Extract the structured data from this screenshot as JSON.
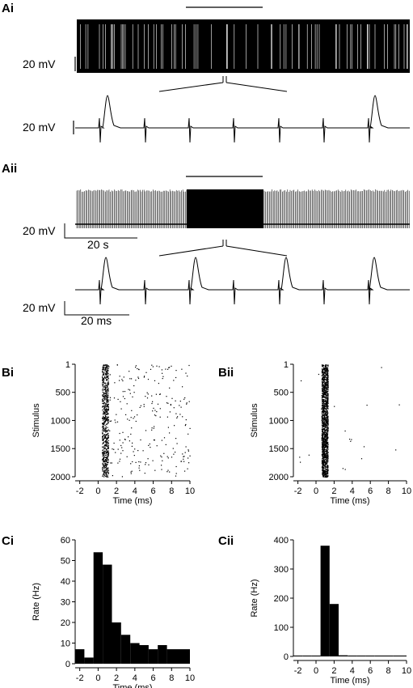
{
  "panels": {
    "Ai": "Ai",
    "Aii": "Aii",
    "Bi": "Bi",
    "Bii": "Bii",
    "Ci": "Ci",
    "Cii": "Cii"
  },
  "scale_bars": {
    "ai_voltage": "20 mV",
    "ai_zoom_voltage": "20 mV",
    "aii_voltage": "20 mV",
    "aii_time": "20 s",
    "aii_zoom_voltage": "20 mV",
    "aii_zoom_time": "20 ms"
  },
  "chart_data": [
    {
      "panel": "Bi",
      "type": "scatter",
      "xlabel": "Time (ms)",
      "ylabel": "Stimulus",
      "xlim": [
        -2.5,
        10
      ],
      "ylim": [
        2050,
        1
      ],
      "x_ticks": [
        -2,
        0,
        2,
        4,
        6,
        8,
        10
      ],
      "y_ticks": [
        1,
        500,
        1000,
        1500,
        2000
      ],
      "description": "raster; dense column of spikes at ~0.5-1 ms, sparse scattered spikes 1-10 ms",
      "peak_x": [
        0.4,
        1.1
      ],
      "sparse_count": 240
    },
    {
      "panel": "Bii",
      "type": "scatter",
      "xlabel": "Time (ms)",
      "ylabel": "Stimulus",
      "xlim": [
        -2.5,
        10
      ],
      "ylim": [
        2050,
        1
      ],
      "x_ticks": [
        -2,
        0,
        2,
        4,
        6,
        8,
        10
      ],
      "y_ticks": [
        1,
        500,
        1000,
        1500,
        2000
      ],
      "description": "raster; very dense column of spikes at ~0.7-1.2 ms, very few spikes elsewhere",
      "peak_x": [
        0.6,
        1.3
      ],
      "sparse_count": 20
    },
    {
      "panel": "Ci",
      "type": "bar",
      "xlabel": "Time (ms)",
      "ylabel": "Rate (Hz)",
      "xlim": [
        -2.5,
        10
      ],
      "ylim": [
        0,
        60
      ],
      "x_ticks": [
        -2,
        0,
        2,
        4,
        6,
        8,
        10
      ],
      "y_ticks": [
        0,
        10,
        20,
        30,
        40,
        50,
        60
      ],
      "bin_edges": [
        -2.5,
        -1.5,
        -0.5,
        0.5,
        1.5,
        2.5,
        3.5,
        4.5,
        5.5,
        6.5,
        7.5,
        8.5,
        10
      ],
      "values": [
        7,
        3,
        54,
        48,
        20,
        14,
        10,
        9,
        7,
        9,
        7,
        7
      ]
    },
    {
      "panel": "Cii",
      "type": "bar",
      "xlabel": "Time (ms)",
      "ylabel": "Rate (Hz)",
      "xlim": [
        -2.5,
        10
      ],
      "ylim": [
        0,
        400
      ],
      "x_ticks": [
        -2,
        0,
        2,
        4,
        6,
        8,
        10
      ],
      "y_ticks": [
        0,
        100,
        200,
        300,
        400
      ],
      "bin_edges": [
        -2.5,
        -1.5,
        -0.5,
        0.5,
        1.5,
        2.5,
        3.5,
        4.5,
        5.5,
        6.5,
        7.5,
        8.5,
        10
      ],
      "values": [
        3,
        3,
        3,
        380,
        180,
        4,
        3,
        3,
        3,
        3,
        3,
        3
      ]
    }
  ]
}
